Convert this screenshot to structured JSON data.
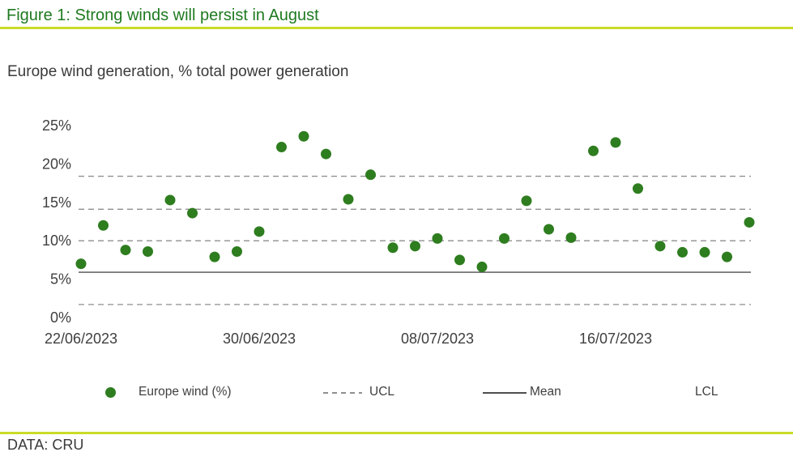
{
  "header": {
    "title": "Figure 1: Strong winds will persist in August"
  },
  "subtitle": "Europe wind generation, % total power generation",
  "footer": {
    "source": "DATA: CRU"
  },
  "colors": {
    "title_green": "#1f7a20",
    "accent_lime": "#c9db28",
    "dot_green": "#2e7d1f",
    "dashed_gray": "#8f8f8f",
    "mean_gray": "#4f4f4f",
    "text_dark": "#3f3f3f"
  },
  "legend": {
    "europe_wind_label": "Europe wind (%)",
    "ucl_label": "UCL",
    "mean_label": "Mean",
    "lcl_label": "LCL"
  },
  "chart_data": {
    "type": "scatter",
    "title": "Figure 1: Strong winds will persist in August",
    "subtitle": "Europe wind generation, % total power generation",
    "series_name": "Europe wind (%)",
    "dates": [
      "22/06/2023",
      "23/06/2023",
      "24/06/2023",
      "25/06/2023",
      "26/06/2023",
      "27/06/2023",
      "28/06/2023",
      "29/06/2023",
      "30/06/2023",
      "01/07/2023",
      "02/07/2023",
      "03/07/2023",
      "04/07/2023",
      "05/07/2023",
      "06/07/2023",
      "07/07/2023",
      "08/07/2023",
      "09/07/2023",
      "10/07/2023",
      "11/07/2023",
      "12/07/2023",
      "13/07/2023",
      "14/07/2023",
      "15/07/2023",
      "16/07/2023",
      "17/07/2023",
      "18/07/2023",
      "19/07/2023",
      "20/07/2023",
      "21/07/2023",
      "22/07/2023"
    ],
    "values": [
      7.0,
      12.0,
      8.8,
      8.6,
      15.3,
      13.6,
      7.9,
      8.6,
      11.2,
      22.2,
      23.6,
      21.3,
      15.4,
      18.6,
      9.1,
      9.3,
      10.3,
      7.5,
      6.6,
      10.3,
      15.2,
      11.5,
      10.4,
      21.7,
      22.8,
      16.8,
      9.3,
      8.5,
      8.5,
      7.9,
      12.4
    ],
    "mean_pct": 5.9,
    "ucl_pct": 18.4,
    "dashed_levels_pct": [
      18.4,
      14.1,
      10.0,
      1.7
    ],
    "y_ticks": [
      0,
      5,
      10,
      15,
      20,
      25
    ],
    "y_tick_labels": [
      "0%",
      "5%",
      "10%",
      "15%",
      "20%",
      "25%"
    ],
    "x_tick_labels": [
      "22/06/2023",
      "30/06/2023",
      "08/07/2023",
      "16/07/2023"
    ],
    "x_tick_day_index": [
      0,
      8,
      16,
      24
    ],
    "ylim": [
      0,
      26
    ],
    "grid": "horizontal-dashed-control-zones-only",
    "legend_position": "bottom"
  }
}
